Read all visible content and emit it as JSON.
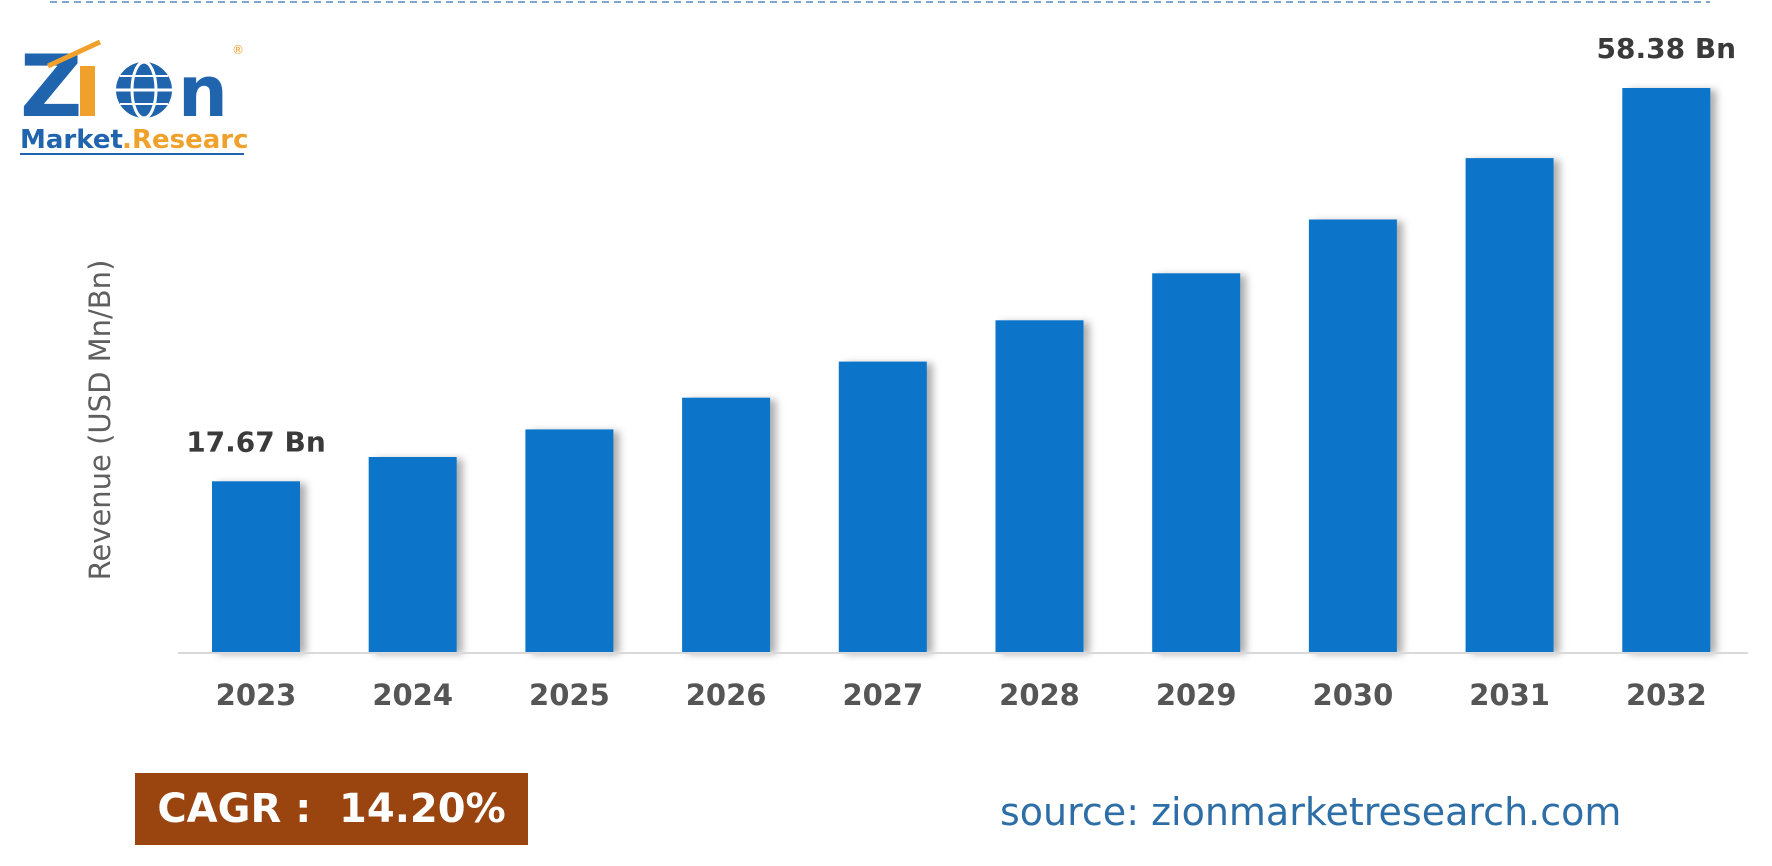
{
  "logo": {
    "brand_top": "Zion",
    "brand_bottom_left": "Market",
    "brand_bottom_right": "Research",
    "brand_color_blue": "#1f64ac",
    "brand_color_orange": "#f0a12b",
    "registered": "®"
  },
  "chart_data": {
    "type": "bar",
    "categories": [
      "2023",
      "2024",
      "2025",
      "2026",
      "2027",
      "2028",
      "2029",
      "2030",
      "2031",
      "2032"
    ],
    "values": [
      17.67,
      20.18,
      23.04,
      26.32,
      30.06,
      34.33,
      39.2,
      44.77,
      51.12,
      58.38
    ],
    "data_labels": {
      "0": "17.67 Bn",
      "9": "58.38 Bn"
    },
    "title": "",
    "xlabel": "",
    "ylabel": "Revenue (USD Mn/Bn)",
    "ylim": [
      0,
      58.38
    ],
    "grid": false,
    "bar_color": "#0a74c9"
  },
  "cagr": {
    "text": "CAGR :  14.20%",
    "bg_color": "#9a4410"
  },
  "source": {
    "text": "source: zionmarketresearch.com",
    "color": "#2e6ea6"
  }
}
